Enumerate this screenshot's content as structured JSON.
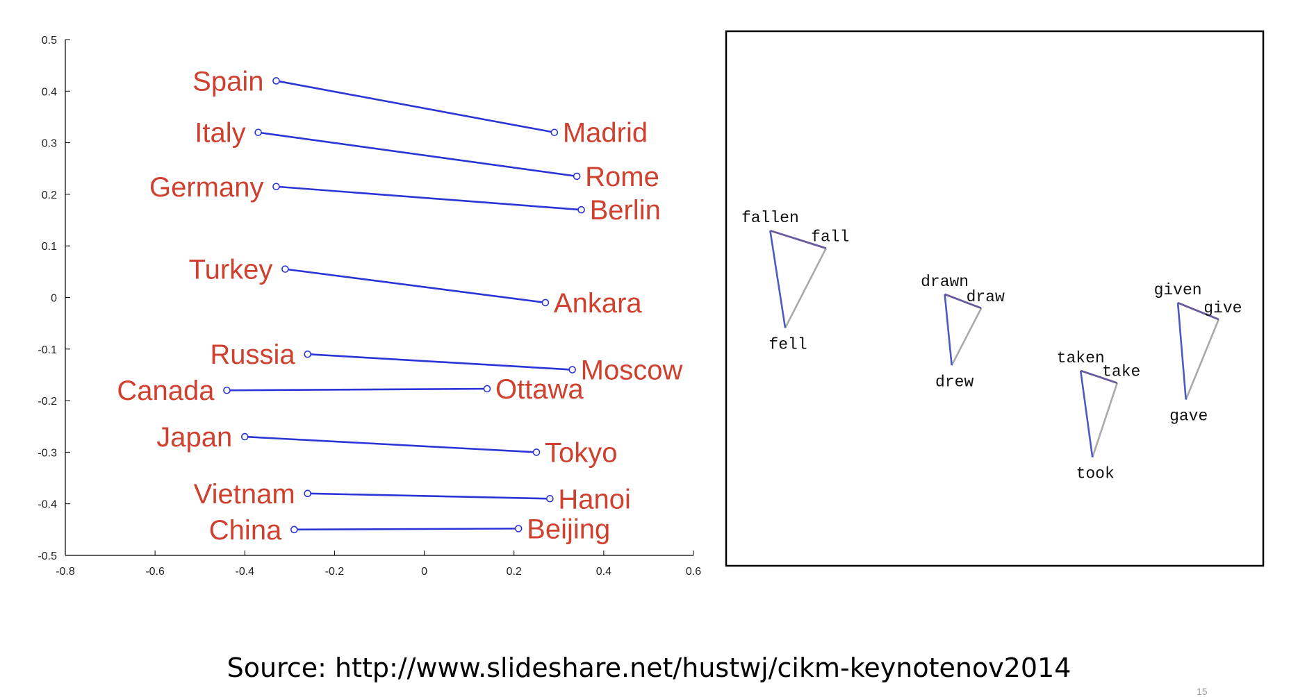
{
  "source_text": "Source: http://www.slideshare.net/hustwj/cikm-keynotenov2014",
  "page_number": "15",
  "colors": {
    "country_label": "#d0402e",
    "pair_line": "#2b35d6",
    "axis": "#000000",
    "triangle_blue": "#4a5bc4",
    "triangle_gray": "#a9a9a9",
    "triangle_purple": "#6a5a9e"
  },
  "chart_data": [
    {
      "type": "scatter",
      "xlim": [
        -0.8,
        0.6
      ],
      "ylim": [
        -0.5,
        0.5
      ],
      "xticks": [
        -0.8,
        -0.6,
        -0.4,
        -0.2,
        0,
        0.2,
        0.4,
        0.6
      ],
      "yticks": [
        0.5,
        0.4,
        0.3,
        0.2,
        0.1,
        0,
        -0.1,
        -0.2,
        -0.3,
        -0.4,
        -0.5
      ],
      "xtick_labels": [
        "-0.8",
        "-0.6",
        "-0.4",
        "-0.2",
        "0",
        "0.2",
        "0.4",
        "0.6"
      ],
      "ytick_labels": [
        "0.5",
        "0.4",
        "0.3",
        "0.2",
        "0.1",
        "0",
        "-0.1",
        "-0.2",
        "-0.3",
        "-0.4",
        "-0.5"
      ],
      "grid": false,
      "pairs": [
        {
          "country": "Spain",
          "capital": "Madrid",
          "country_xy": [
            -0.33,
            0.42
          ],
          "capital_xy": [
            0.29,
            0.32
          ]
        },
        {
          "country": "Italy",
          "capital": "Rome",
          "country_xy": [
            -0.37,
            0.32
          ],
          "capital_xy": [
            0.34,
            0.235
          ]
        },
        {
          "country": "Germany",
          "capital": "Berlin",
          "country_xy": [
            -0.33,
            0.215
          ],
          "capital_xy": [
            0.35,
            0.17
          ]
        },
        {
          "country": "Turkey",
          "capital": "Ankara",
          "country_xy": [
            -0.31,
            0.055
          ],
          "capital_xy": [
            0.27,
            -0.01
          ]
        },
        {
          "country": "Russia",
          "capital": "Moscow",
          "country_xy": [
            -0.26,
            -0.11
          ],
          "capital_xy": [
            0.33,
            -0.14
          ]
        },
        {
          "country": "Canada",
          "capital": "Ottawa",
          "country_xy": [
            -0.44,
            -0.18
          ],
          "capital_xy": [
            0.14,
            -0.177
          ]
        },
        {
          "country": "Japan",
          "capital": "Tokyo",
          "country_xy": [
            -0.4,
            -0.27
          ],
          "capital_xy": [
            0.25,
            -0.3
          ]
        },
        {
          "country": "Vietnam",
          "capital": "Hanoi",
          "country_xy": [
            -0.26,
            -0.38
          ],
          "capital_xy": [
            0.28,
            -0.39
          ]
        },
        {
          "country": "China",
          "capital": "Beijing",
          "country_xy": [
            -0.29,
            -0.45
          ],
          "capital_xy": [
            0.21,
            -0.448
          ]
        }
      ]
    },
    {
      "type": "scatter",
      "xlim": [
        0,
        1
      ],
      "ylim": [
        0,
        1
      ],
      "axis_ticks": false,
      "grid": false,
      "word_triangles": [
        {
          "participle": "fallen",
          "base": "fall",
          "past": "fell",
          "participle_xy": [
            0.082,
            0.627
          ],
          "base_xy": [
            0.186,
            0.594
          ],
          "past_xy": [
            0.11,
            0.445
          ]
        },
        {
          "participle": "drawn",
          "base": "draw",
          "past": "drew",
          "participle_xy": [
            0.407,
            0.508
          ],
          "base_xy": [
            0.475,
            0.482
          ],
          "past_xy": [
            0.42,
            0.375
          ]
        },
        {
          "participle": "taken",
          "base": "take",
          "past": "took",
          "participle_xy": [
            0.66,
            0.365
          ],
          "base_xy": [
            0.728,
            0.342
          ],
          "past_xy": [
            0.682,
            0.203
          ]
        },
        {
          "participle": "given",
          "base": "give",
          "past": "gave",
          "participle_xy": [
            0.841,
            0.492
          ],
          "base_xy": [
            0.917,
            0.461
          ],
          "past_xy": [
            0.856,
            0.311
          ]
        }
      ]
    }
  ]
}
